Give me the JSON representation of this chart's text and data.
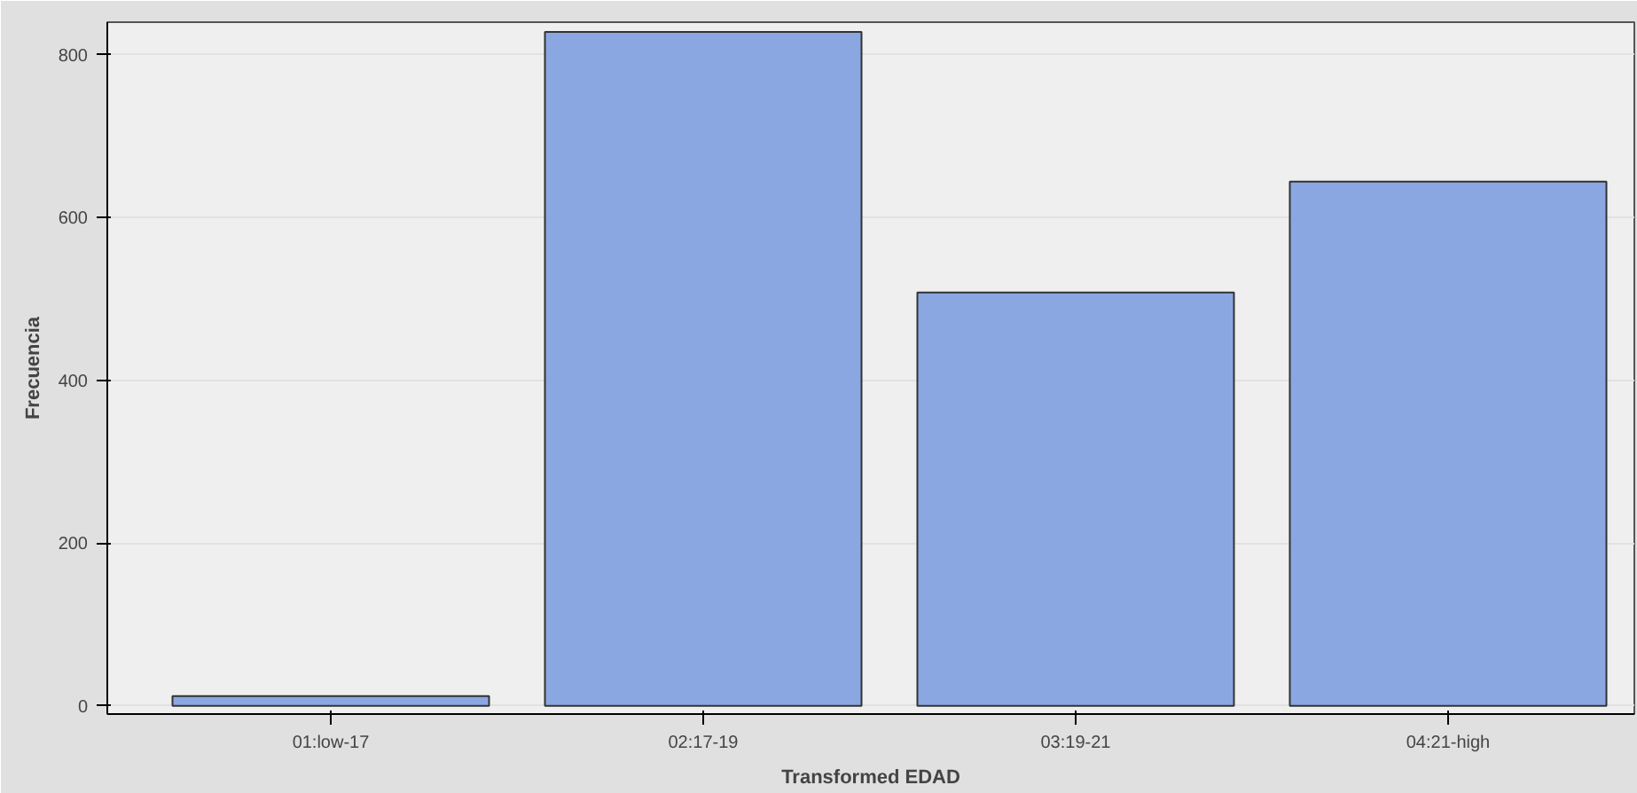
{
  "chart_data": {
    "type": "bar",
    "xlabel": "Transformed EDAD",
    "ylabel": "Frecuencia",
    "categories": [
      "01:low-17",
      "02:17-19",
      "03:19-21",
      "04:21-high"
    ],
    "values": [
      12,
      828,
      508,
      644
    ],
    "color": "#8ba7e2",
    "ylim": [
      -10,
      840
    ],
    "yticks": [
      0,
      200,
      400,
      600,
      800
    ],
    "grid": "y"
  }
}
